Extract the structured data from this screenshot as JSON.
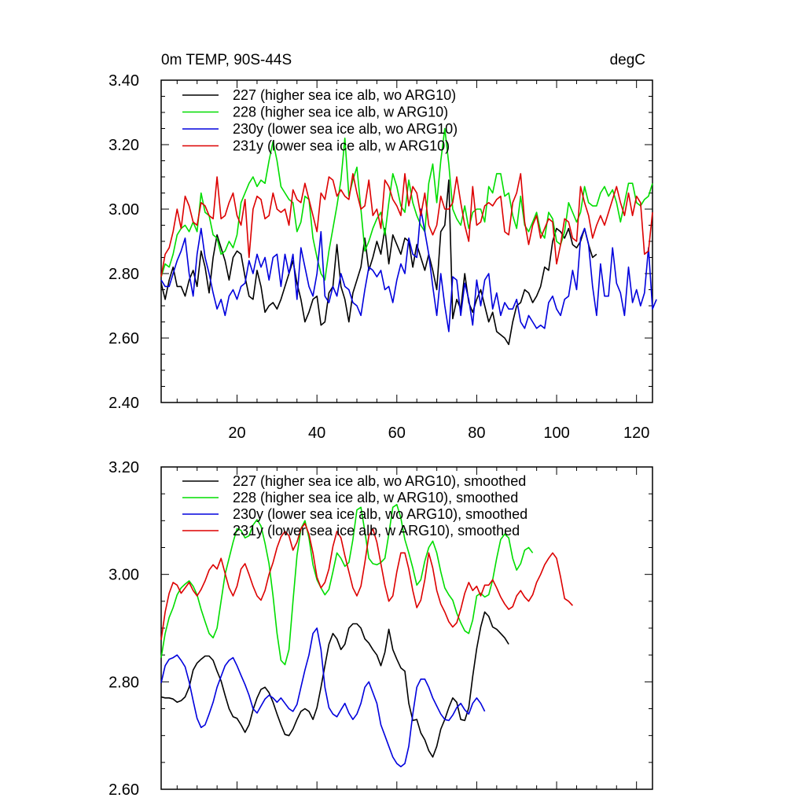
{
  "chart_data": [
    {
      "type": "line",
      "title": "0m TEMP, 90S-44S",
      "units": "degC",
      "xlabel": "",
      "ylabel": "",
      "xlim": [
        1,
        124
      ],
      "ylim": [
        2.4,
        3.4
      ],
      "xticks": [
        20,
        40,
        60,
        80,
        100,
        120
      ],
      "xtick_labels": [
        "20",
        "40",
        "60",
        "80",
        "100",
        "120"
      ],
      "yticks": [
        2.4,
        2.6,
        2.8,
        3.0,
        3.2,
        3.4
      ],
      "ytick_labels": [
        "2.40",
        "2.60",
        "2.80",
        "3.00",
        "3.20",
        "3.40"
      ],
      "legend_position": "top-left",
      "series": [
        {
          "name": "227 (higher sea ice alb, wo ARG10)",
          "color": "#000000",
          "x_start": 1,
          "values": [
            2.77,
            2.72,
            2.78,
            2.82,
            2.76,
            2.76,
            2.73,
            2.78,
            2.81,
            2.76,
            2.87,
            2.82,
            2.74,
            2.85,
            2.92,
            2.88,
            2.84,
            2.78,
            2.85,
            2.87,
            2.86,
            2.79,
            2.73,
            2.72,
            2.81,
            2.76,
            2.68,
            2.7,
            2.71,
            2.69,
            2.72,
            2.76,
            2.8,
            2.84,
            2.77,
            2.72,
            2.65,
            2.68,
            2.72,
            2.73,
            2.64,
            2.65,
            2.74,
            2.76,
            2.89,
            2.76,
            2.72,
            2.65,
            2.74,
            2.78,
            2.82,
            2.91,
            2.81,
            2.85,
            2.9,
            2.86,
            2.94,
            2.83,
            2.92,
            2.89,
            2.86,
            2.91,
            2.9,
            2.82,
            2.89,
            2.85,
            2.81,
            2.86,
            2.81,
            2.75,
            2.93,
            2.95,
            3.09,
            2.66,
            2.72,
            2.69,
            2.8,
            2.71,
            2.68,
            2.72,
            2.75,
            2.7,
            2.65,
            2.68,
            2.62,
            2.61,
            2.6,
            2.58,
            2.65,
            2.7,
            2.71,
            2.75,
            2.74,
            2.71,
            2.73,
            2.76,
            2.82,
            2.81,
            2.9,
            2.94,
            2.93,
            2.91,
            2.94,
            2.89,
            2.88,
            2.9,
            2.94,
            2.89,
            2.85,
            2.86
          ]
        },
        {
          "name": "228 (higher sea ice alb, w ARG10)",
          "color": "#00dd00",
          "x_start": 1,
          "values": [
            2.79,
            2.83,
            2.82,
            2.86,
            2.92,
            2.94,
            2.95,
            2.93,
            2.96,
            2.93,
            3.05,
            2.99,
            2.98,
            2.92,
            2.91,
            2.86,
            2.87,
            2.9,
            2.88,
            2.92,
            3.02,
            3.05,
            3.08,
            3.1,
            3.07,
            3.09,
            3.08,
            3.15,
            3.21,
            3.15,
            3.07,
            3.05,
            3.03,
            3.02,
            2.93,
            2.96,
            3.04,
            3.03,
            2.91,
            2.85,
            2.8,
            2.78,
            2.87,
            2.94,
            3.01,
            3.09,
            3.22,
            3.04,
            3.09,
            3.13,
            3.0,
            2.87,
            2.9,
            2.94,
            2.97,
            2.99,
            2.92,
            3.02,
            3.11,
            3.07,
            3.01,
            2.99,
            3.09,
            3.02,
            2.98,
            2.95,
            2.93,
            3.08,
            3.14,
            3.02,
            3.15,
            3.25,
            3.14,
            3.0,
            2.97,
            2.95,
            3.01,
            2.94,
            2.99,
            3.0,
            3.0,
            2.96,
            3.07,
            3.05,
            3.11,
            3.11,
            3.04,
            3.05,
            2.98,
            2.94,
            3.04,
            2.95,
            2.93,
            2.96,
            2.99,
            2.93,
            2.91,
            2.99,
            2.97,
            2.9,
            2.89,
            2.93,
            3.02,
            2.99,
            2.96,
            2.99,
            3.07,
            3.02,
            3.01,
            3.01,
            3.05,
            3.07,
            3.04,
            3.06,
            3.02,
            2.96,
            3.02,
            3.08,
            3.08,
            3.02,
            3.01,
            3.03,
            3.04,
            3.08
          ]
        },
        {
          "name": "230y (lower sea ice alb, wo ARG10)",
          "color": "#0000dd",
          "x_start": 1,
          "values": [
            2.78,
            2.76,
            2.76,
            2.8,
            2.84,
            2.87,
            2.91,
            2.8,
            2.73,
            2.86,
            2.94,
            2.85,
            2.8,
            2.74,
            2.69,
            2.72,
            2.67,
            2.73,
            2.75,
            2.72,
            2.76,
            2.77,
            2.84,
            2.8,
            2.86,
            2.82,
            2.85,
            2.78,
            2.85,
            2.86,
            2.76,
            2.86,
            2.8,
            2.86,
            2.72,
            2.88,
            2.82,
            2.76,
            2.73,
            2.8,
            2.93,
            2.73,
            2.71,
            2.76,
            2.73,
            2.8,
            2.76,
            2.75,
            2.71,
            2.7,
            2.67,
            2.75,
            2.82,
            2.81,
            2.79,
            2.81,
            2.75,
            2.76,
            2.71,
            2.78,
            2.83,
            2.8,
            2.91,
            2.86,
            2.85,
            3.0,
            2.93,
            2.86,
            2.76,
            2.67,
            2.8,
            2.7,
            2.62,
            2.79,
            2.78,
            2.67,
            2.77,
            2.72,
            2.64,
            2.78,
            2.7,
            2.78,
            2.8,
            2.69,
            2.74,
            2.67,
            2.71,
            2.69,
            2.69,
            2.72,
            2.65,
            2.63,
            2.67,
            2.65,
            2.63,
            2.64,
            2.63,
            2.71,
            2.73,
            2.69,
            2.67,
            2.72,
            2.73,
            2.81,
            2.75,
            2.91,
            2.94,
            2.89,
            2.76,
            2.67,
            2.83,
            2.73,
            2.73,
            2.88,
            2.77,
            2.74,
            2.67,
            2.82,
            2.71,
            2.75,
            2.7,
            2.74,
            2.88,
            2.69,
            2.72
          ]
        },
        {
          "name": "231y (lower sea ice alb, w ARG10)",
          "color": "#dd0000",
          "x_start": 1,
          "values": [
            2.79,
            2.86,
            2.88,
            2.93,
            3.0,
            2.94,
            3.04,
            3.01,
            2.96,
            2.95,
            3.02,
            3.01,
            2.98,
            2.97,
            3.1,
            2.97,
            2.98,
            3.02,
            3.05,
            2.98,
            2.95,
            3.03,
            2.85,
            3.0,
            3.04,
            3.03,
            2.97,
            2.98,
            3.05,
            3.0,
            2.99,
            3.0,
            2.95,
            3.06,
            3.03,
            3.02,
            3.08,
            3.03,
            2.98,
            2.93,
            3.05,
            3.03,
            3.1,
            3.09,
            3.04,
            3.06,
            3.04,
            3.03,
            3.11,
            3.05,
            3.0,
            3.01,
            3.09,
            2.98,
            3.0,
            2.94,
            3.09,
            3.07,
            3.03,
            3.01,
            2.98,
            3.11,
            3.01,
            3.07,
            3.05,
            2.98,
            3.05,
            2.95,
            2.92,
            2.95,
            3.04,
            3.0,
            3.0,
            3.02,
            3.1,
            3.02,
            2.95,
            2.9,
            3.07,
            2.95,
            2.96,
            3.01,
            3.02,
            3.01,
            3.03,
            3.04,
            2.93,
            2.92,
            3.02,
            3.05,
            3.11,
            2.96,
            2.89,
            2.95,
            2.98,
            2.91,
            2.94,
            2.97,
            2.96,
            2.83,
            2.89,
            2.97,
            2.96,
            2.91,
            2.9,
            3.07,
            3.02,
            2.98,
            2.91,
            2.95,
            2.98,
            2.95,
            2.99,
            3.03,
            3.07,
            3.02,
            2.98,
            3.05,
            2.98,
            3.04,
            3.02,
            2.86,
            2.87,
            2.99
          ]
        }
      ]
    },
    {
      "type": "line",
      "title": "",
      "xlabel": "",
      "ylabel": "",
      "xlim": [
        1,
        124
      ],
      "ylim": [
        2.6,
        3.2
      ],
      "xticks": [
        20,
        40,
        60,
        80,
        100,
        120
      ],
      "xtick_labels": [],
      "yticks": [
        2.6,
        2.8,
        3.0,
        3.2
      ],
      "ytick_labels": [
        "2.60",
        "2.80",
        "3.00",
        "3.20"
      ],
      "legend_position": "top-left",
      "series": [
        {
          "name": "227 (higher sea ice alb, wo ARG10), smoothed",
          "color": "#000000",
          "x_start": 1,
          "values": [
            2.772,
            2.77,
            2.77,
            2.768,
            2.762,
            2.765,
            2.772,
            2.79,
            2.822,
            2.835,
            2.842,
            2.848,
            2.848,
            2.84,
            2.82,
            2.802,
            2.775,
            2.75,
            2.735,
            2.732,
            2.72,
            2.706,
            2.72,
            2.748,
            2.77,
            2.786,
            2.79,
            2.78,
            2.762,
            2.74,
            2.72,
            2.702,
            2.7,
            2.712,
            2.73,
            2.745,
            2.75,
            2.745,
            2.73,
            2.752,
            2.79,
            2.83,
            2.87,
            2.89,
            2.88,
            2.86,
            2.87,
            2.9,
            2.908,
            2.908,
            2.9,
            2.88,
            2.872,
            2.86,
            2.85,
            2.83,
            2.855,
            2.898,
            2.86,
            2.842,
            2.826,
            2.82,
            2.76,
            2.728,
            2.73,
            2.705,
            2.692,
            2.672,
            2.66,
            2.68,
            2.712,
            2.73,
            2.752,
            2.77,
            2.762,
            2.73,
            2.728,
            2.752,
            2.81,
            2.862,
            2.902,
            2.93,
            2.922,
            2.902,
            2.898,
            2.89,
            2.882,
            2.87
          ]
        },
        {
          "name": "228 (higher sea ice alb, w ARG10), smoothed",
          "color": "#00dd00",
          "x_start": 1,
          "values": [
            2.845,
            2.89,
            2.92,
            2.938,
            2.962,
            2.975,
            2.982,
            2.988,
            2.978,
            2.962,
            2.935,
            2.912,
            2.89,
            2.882,
            2.9,
            2.95,
            3.0,
            3.03,
            3.06,
            3.085,
            3.082,
            3.068,
            3.072,
            3.092,
            3.102,
            3.09,
            3.058,
            3.02,
            2.96,
            2.89,
            2.84,
            2.832,
            2.86,
            2.95,
            3.035,
            3.085,
            3.1,
            3.068,
            3.018,
            2.99,
            2.975,
            2.962,
            2.972,
            3.005,
            3.04,
            3.03,
            3.015,
            3.022,
            3.065,
            3.12,
            3.125,
            3.08,
            3.03,
            3.02,
            3.018,
            3.022,
            3.03,
            3.075,
            3.125,
            3.13,
            3.105,
            3.065,
            3.04,
            3.012,
            2.98,
            2.99,
            3.025,
            3.05,
            3.062,
            3.04,
            3.005,
            2.975,
            2.962,
            2.952,
            2.928,
            2.91,
            2.895,
            2.89,
            2.915,
            2.96,
            2.965,
            2.958,
            2.962,
            2.99,
            3.03,
            3.065,
            3.075,
            3.068,
            3.03,
            3.008,
            3.02,
            3.045,
            3.05,
            3.04
          ]
        },
        {
          "name": "230y (lower sea ice alb, wo ARG10), smoothed",
          "color": "#0000dd",
          "x_start": 1,
          "values": [
            2.798,
            2.83,
            2.842,
            2.845,
            2.85,
            2.84,
            2.828,
            2.8,
            2.765,
            2.732,
            2.715,
            2.72,
            2.74,
            2.762,
            2.79,
            2.81,
            2.83,
            2.84,
            2.845,
            2.83,
            2.812,
            2.795,
            2.775,
            2.75,
            2.742,
            2.755,
            2.768,
            2.775,
            2.77,
            2.762,
            2.77,
            2.76,
            2.75,
            2.745,
            2.758,
            2.79,
            2.822,
            2.85,
            2.89,
            2.9,
            2.86,
            2.79,
            2.752,
            2.74,
            2.735,
            2.748,
            2.76,
            2.742,
            2.73,
            2.74,
            2.76,
            2.79,
            2.8,
            2.78,
            2.76,
            2.72,
            2.7,
            2.68,
            2.66,
            2.648,
            2.642,
            2.648,
            2.68,
            2.74,
            2.79,
            2.805,
            2.805,
            2.79,
            2.77,
            2.755,
            2.74,
            2.73,
            2.728,
            2.738,
            2.752,
            2.76,
            2.748,
            2.74,
            2.76,
            2.77,
            2.76,
            2.745
          ]
        },
        {
          "name": "231y (lower sea ice alb, w ARG10), smoothed",
          "color": "#dd0000",
          "x_start": 1,
          "values": [
            2.878,
            2.93,
            2.965,
            2.985,
            2.98,
            2.965,
            2.975,
            2.985,
            2.97,
            2.96,
            2.972,
            2.988,
            3.008,
            3.018,
            3.01,
            3.03,
            3.002,
            2.975,
            2.96,
            2.978,
            3.01,
            3.02,
            3.0,
            2.978,
            2.96,
            2.952,
            2.97,
            3.0,
            3.022,
            3.05,
            3.07,
            3.08,
            3.072,
            3.045,
            3.06,
            3.085,
            3.095,
            3.075,
            3.04,
            2.995,
            2.975,
            2.985,
            3.01,
            3.052,
            3.08,
            3.068,
            3.035,
            3.005,
            2.975,
            2.96,
            2.978,
            3.022,
            3.072,
            3.085,
            3.06,
            3.02,
            2.98,
            2.95,
            2.96,
            3.005,
            3.04,
            3.04,
            3.01,
            2.97,
            2.938,
            2.952,
            2.99,
            3.04,
            3.012,
            2.97,
            2.945,
            2.93,
            2.912,
            2.902,
            2.91,
            2.935,
            2.965,
            2.985,
            2.97,
            2.978,
            2.96,
            2.98,
            2.98,
            2.99,
            2.975,
            2.958,
            2.945,
            2.935,
            2.94,
            2.96,
            2.97,
            2.958,
            2.95,
            2.962,
            2.985,
            3.0,
            3.018,
            3.03,
            3.04,
            3.03,
            2.995,
            2.955,
            2.95,
            2.942
          ]
        }
      ]
    }
  ]
}
